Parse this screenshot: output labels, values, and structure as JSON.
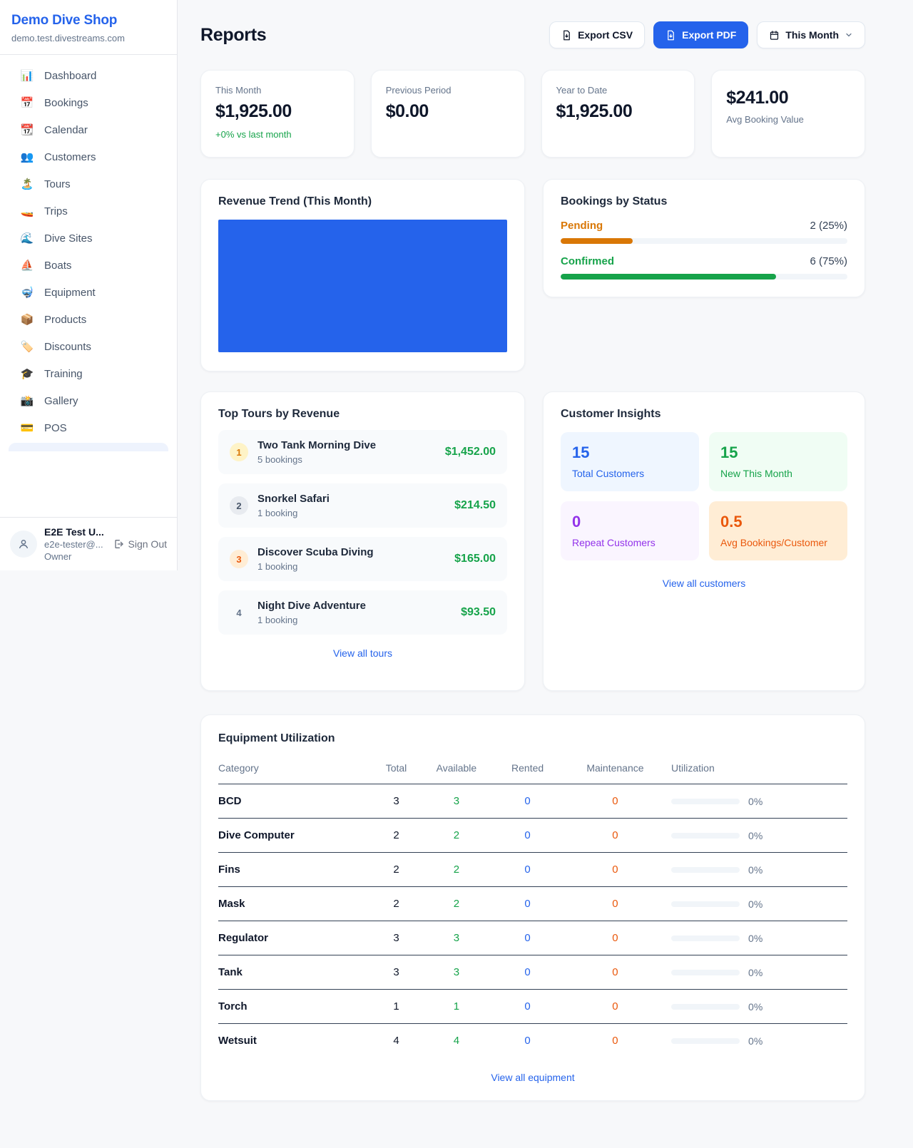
{
  "colors": {
    "accent_blue": "#2563eb",
    "green": "#16a34a",
    "pending_amber": "#d97706",
    "maintenance_orange": "#ea580c",
    "purple": "#9333ea"
  },
  "brand": {
    "name": "Demo Dive Shop",
    "domain": "demo.test.divestreams.com"
  },
  "sidebar": {
    "items": [
      {
        "label": "Dashboard",
        "icon": "📊"
      },
      {
        "label": "Bookings",
        "icon": "📅"
      },
      {
        "label": "Calendar",
        "icon": "📆"
      },
      {
        "label": "Customers",
        "icon": "👥"
      },
      {
        "label": "Tours",
        "icon": "🏝️"
      },
      {
        "label": "Trips",
        "icon": "🚤"
      },
      {
        "label": "Dive Sites",
        "icon": "🌊"
      },
      {
        "label": "Boats",
        "icon": "⛵"
      },
      {
        "label": "Equipment",
        "icon": "🤿"
      },
      {
        "label": "Products",
        "icon": "📦"
      },
      {
        "label": "Discounts",
        "icon": "🏷️"
      },
      {
        "label": "Training",
        "icon": "🎓"
      },
      {
        "label": "Gallery",
        "icon": "📸"
      },
      {
        "label": "POS",
        "icon": "💳"
      }
    ],
    "user": {
      "name": "E2E Test U...",
      "email": "e2e-tester@...",
      "role": "Owner",
      "signout_label": "Sign Out"
    }
  },
  "header": {
    "title": "Reports",
    "export_csv_label": "Export CSV",
    "export_pdf_label": "Export PDF",
    "period_label": "This Month"
  },
  "stats": [
    {
      "label": "This Month",
      "value": "$1,925.00",
      "delta": "+0% vs last month"
    },
    {
      "label": "Previous Period",
      "value": "$0.00"
    },
    {
      "label": "Year to Date",
      "value": "$1,925.00"
    },
    {
      "label": "Avg Booking Value",
      "value": "$241.00"
    }
  ],
  "revenue_trend": {
    "title": "Revenue Trend (This Month)",
    "chart_data": {
      "type": "area",
      "title": "Revenue Trend (This Month)",
      "note": "chart renders as a solid filled block, no visible axes or tick labels",
      "fill_color": "#2563eb"
    }
  },
  "bookings_by_status": {
    "title": "Bookings by Status",
    "rows": [
      {
        "label": "Pending",
        "count_label": "2 (25%)",
        "percent": 25,
        "color": "#d97706"
      },
      {
        "label": "Confirmed",
        "count_label": "6 (75%)",
        "percent": 75,
        "color": "#16a34a"
      }
    ]
  },
  "top_tours": {
    "title": "Top Tours by Revenue",
    "items": [
      {
        "rank": "1",
        "name": "Two Tank Morning Dive",
        "bookings": "5 bookings",
        "revenue": "$1,452.00"
      },
      {
        "rank": "2",
        "name": "Snorkel Safari",
        "bookings": "1 booking",
        "revenue": "$214.50"
      },
      {
        "rank": "3",
        "name": "Discover Scuba Diving",
        "bookings": "1 booking",
        "revenue": "$165.00"
      },
      {
        "rank": "4",
        "name": "Night Dive Adventure",
        "bookings": "1 booking",
        "revenue": "$93.50"
      }
    ],
    "view_all_label": "View all tours"
  },
  "customer_insights": {
    "title": "Customer Insights",
    "tiles": [
      {
        "value": "15",
        "label": "Total Customers"
      },
      {
        "value": "15",
        "label": "New This Month"
      },
      {
        "value": "0",
        "label": "Repeat Customers"
      },
      {
        "value": "0.5",
        "label": "Avg Bookings/Customer"
      }
    ],
    "view_all_label": "View all customers"
  },
  "equipment": {
    "title": "Equipment Utilization",
    "columns": [
      "Category",
      "Total",
      "Available",
      "Rented",
      "Maintenance",
      "Utilization"
    ],
    "rows": [
      {
        "category": "BCD",
        "total": "3",
        "available": "3",
        "rented": "0",
        "maintenance": "0",
        "utilization_pct": 0,
        "utilization_label": "0%"
      },
      {
        "category": "Dive Computer",
        "total": "2",
        "available": "2",
        "rented": "0",
        "maintenance": "0",
        "utilization_pct": 0,
        "utilization_label": "0%"
      },
      {
        "category": "Fins",
        "total": "2",
        "available": "2",
        "rented": "0",
        "maintenance": "0",
        "utilization_pct": 0,
        "utilization_label": "0%"
      },
      {
        "category": "Mask",
        "total": "2",
        "available": "2",
        "rented": "0",
        "maintenance": "0",
        "utilization_pct": 0,
        "utilization_label": "0%"
      },
      {
        "category": "Regulator",
        "total": "3",
        "available": "3",
        "rented": "0",
        "maintenance": "0",
        "utilization_pct": 0,
        "utilization_label": "0%"
      },
      {
        "category": "Tank",
        "total": "3",
        "available": "3",
        "rented": "0",
        "maintenance": "0",
        "utilization_pct": 0,
        "utilization_label": "0%"
      },
      {
        "category": "Torch",
        "total": "1",
        "available": "1",
        "rented": "0",
        "maintenance": "0",
        "utilization_pct": 0,
        "utilization_label": "0%"
      },
      {
        "category": "Wetsuit",
        "total": "4",
        "available": "4",
        "rented": "0",
        "maintenance": "0",
        "utilization_pct": 0,
        "utilization_label": "0%"
      }
    ],
    "view_all_label": "View all equipment"
  }
}
